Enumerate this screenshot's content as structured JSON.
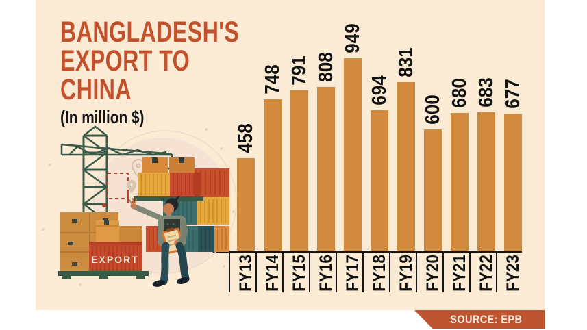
{
  "title": {
    "lines": [
      "BANGLADESH'S",
      "EXPORT TO",
      "CHINA"
    ],
    "subtitle": "(In million $)"
  },
  "source": {
    "label": "SOURCE: EPB"
  },
  "illustration": {
    "export_label": "EXPORT",
    "icons": [
      "crane-icon",
      "shipping-containers-icon",
      "cardboard-boxes-icon",
      "worker-icon",
      "location-pin-icon",
      "dashed-route-icon"
    ]
  },
  "colors": {
    "panel_background": "#FBEBD4",
    "bar": "#CF8A3E",
    "title_red": "#C2512D",
    "badge_red": "#BF5430",
    "axis": "#161616"
  },
  "chart_data": {
    "type": "bar",
    "title": "BANGLADESH'S EXPORT TO CHINA",
    "subtitle": "(In million $)",
    "unit": "million $",
    "categories": [
      "FY13",
      "FY14",
      "FY15",
      "FY16",
      "FY17",
      "FY18",
      "FY19",
      "FY20",
      "FY21",
      "FY22",
      "FY23"
    ],
    "values": [
      458,
      748,
      791,
      808,
      949,
      694,
      831,
      600,
      680,
      683,
      677
    ],
    "xlabel": "",
    "ylabel": "",
    "ylim": [
      0,
      1000
    ],
    "grid": false,
    "legend": "none",
    "value_labels_rotated": true,
    "category_labels_rotated": true,
    "source": "SOURCE: EPB"
  }
}
